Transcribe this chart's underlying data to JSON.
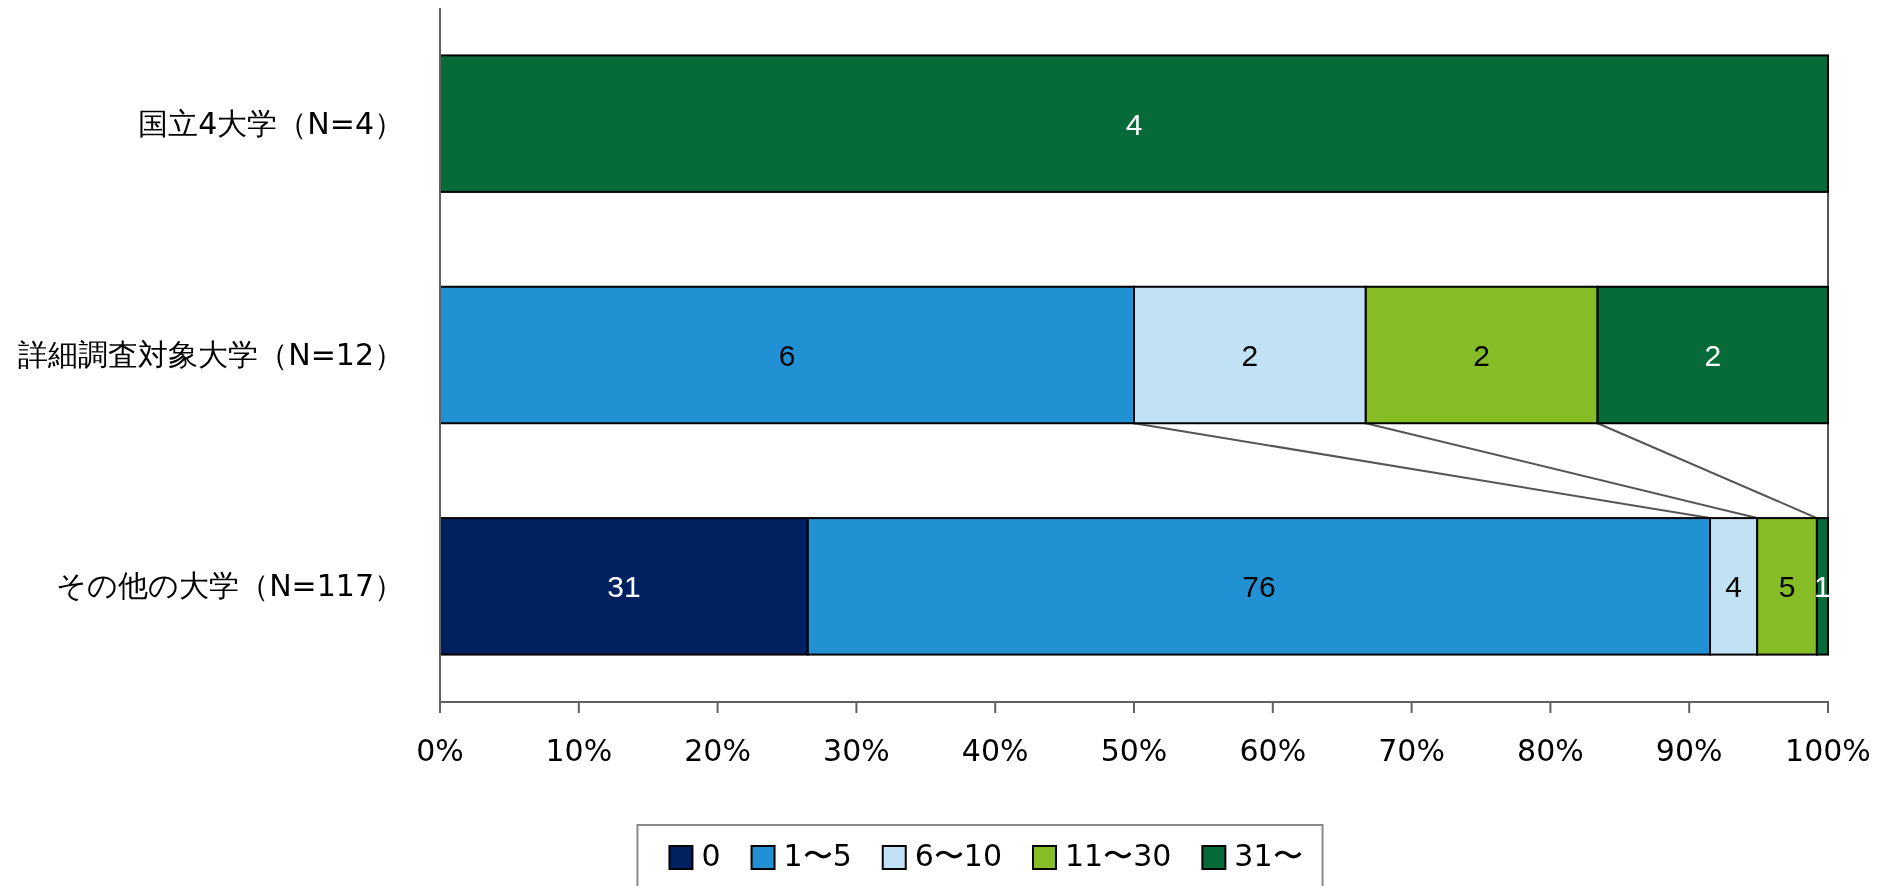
{
  "chart_data": {
    "type": "bar",
    "orientation": "horizontal",
    "stacked": true,
    "categories": [
      "国立4大学（N=4）",
      "詳細調査対象大学（N=12）",
      "その他の大学（N=117）"
    ],
    "series": [
      {
        "name": "0",
        "color": "#002060",
        "values": [
          null,
          null,
          26.5
        ]
      },
      {
        "name": "1〜5",
        "color": "#2191d3",
        "values": [
          null,
          50,
          65.0
        ]
      },
      {
        "name": "6〜10",
        "color": "#c1e1f5",
        "values": [
          null,
          16.7,
          3.4
        ]
      },
      {
        "name": "11〜30",
        "color": "#86bc25",
        "values": [
          null,
          16.7,
          4.3
        ]
      },
      {
        "name": "31〜",
        "color": "#066b38",
        "values": [
          100,
          16.6,
          0.8
        ]
      }
    ],
    "annotations": [
      "4",
      "6",
      "2",
      "2",
      "2",
      "31",
      "76",
      "4",
      "5",
      "1"
    ],
    "xlim": [
      0,
      100
    ],
    "xticks": [
      {
        "value": 0,
        "label": "0%"
      },
      {
        "value": 10,
        "label": "10%"
      },
      {
        "value": 20,
        "label": "20%"
      },
      {
        "value": 30,
        "label": "30%"
      },
      {
        "value": 40,
        "label": "40%"
      },
      {
        "value": 50,
        "label": "50%"
      },
      {
        "value": 60,
        "label": "60%"
      },
      {
        "value": 70,
        "label": "70%"
      },
      {
        "value": 80,
        "label": "80%"
      },
      {
        "value": 90,
        "label": "90%"
      },
      {
        "value": 100,
        "label": "100%"
      }
    ],
    "legend": "bottom"
  }
}
